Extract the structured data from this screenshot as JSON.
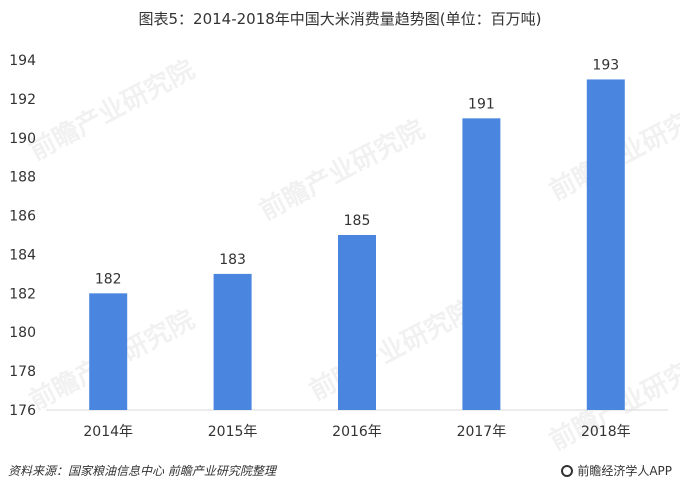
{
  "title": "图表5：2014-2018年中国大米消费量趋势图(单位：百万吨)",
  "watermark_text": "前瞻产业研究院",
  "footer": {
    "source": "资料来源：国家粮油信息中心 前瞻产业研究院整理",
    "brand": "前瞻经济学人APP",
    "brand_icon": "qianzhan-logo-icon"
  },
  "colors": {
    "bar": "#4a86e0",
    "axis": "#d9d9d9",
    "text": "#333333"
  },
  "chart_data": {
    "type": "bar",
    "categories": [
      "2014年",
      "2015年",
      "2016年",
      "2017年",
      "2018年"
    ],
    "values": [
      182,
      183,
      185,
      191,
      193
    ],
    "ylim": [
      176,
      194
    ],
    "yticks": [
      176,
      178,
      180,
      182,
      184,
      186,
      188,
      190,
      192,
      194
    ],
    "grid": false,
    "data_labels": true,
    "legend": "none"
  }
}
